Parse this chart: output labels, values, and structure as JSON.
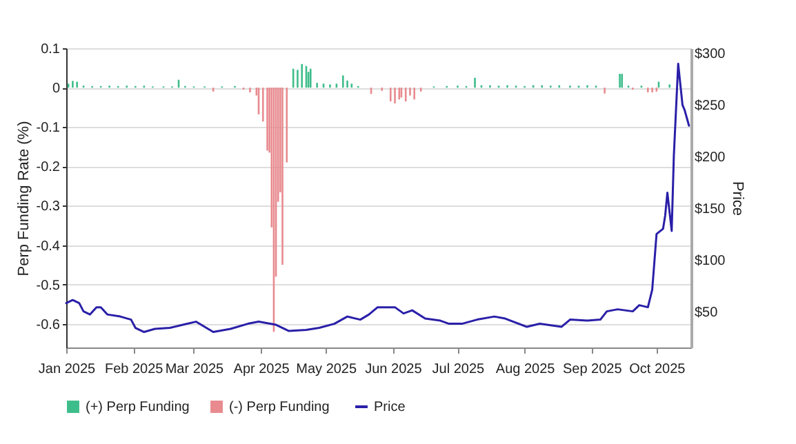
{
  "chart_data": {
    "type": "bar",
    "ylabel": "Perp Funding Rate (%)",
    "y2label": "Price",
    "legend": "bottom",
    "grid": "y",
    "xlim": [
      "2025-01-01",
      "2025-10-17"
    ],
    "xticks": [
      {
        "value": "2025-01-01",
        "label": "Jan 2025"
      },
      {
        "value": "2025-02-01",
        "label": "Feb 2025"
      },
      {
        "value": "2025-03-01",
        "label": "Mar 2025"
      },
      {
        "value": "2025-04-01",
        "label": "Apr 2025"
      },
      {
        "value": "2025-05-01",
        "label": "May 2025"
      },
      {
        "value": "2025-06-01",
        "label": "Jun 2025"
      },
      {
        "value": "2025-07-01",
        "label": "Jul 2025"
      },
      {
        "value": "2025-08-01",
        "label": "Aug 2025"
      },
      {
        "value": "2025-09-01",
        "label": "Sep 2025"
      },
      {
        "value": "2025-10-01",
        "label": "Oct 2025"
      }
    ],
    "ylim": [
      -0.66,
      0.1
    ],
    "yticks": [
      -0.6,
      -0.5,
      -0.4,
      -0.3,
      -0.2,
      -0.1,
      0,
      0.1
    ],
    "y2lim": [
      15,
      305
    ],
    "y2ticks": [
      {
        "value": 50,
        "label": "$50"
      },
      {
        "value": 100,
        "label": "$100"
      },
      {
        "value": 150,
        "label": "$150"
      },
      {
        "value": 200,
        "label": "$200"
      },
      {
        "value": 250,
        "label": "$250"
      },
      {
        "value": 300,
        "label": "$300"
      }
    ],
    "series": [
      {
        "name": "(+) Perp Funding",
        "color": "#3dbd8a",
        "x": [
          "2025-01-02",
          "2025-01-04",
          "2025-01-06",
          "2025-01-09",
          "2025-01-13",
          "2025-01-17",
          "2025-01-21",
          "2025-01-25",
          "2025-01-29",
          "2025-02-02",
          "2025-02-06",
          "2025-02-10",
          "2025-02-15",
          "2025-02-19",
          "2025-02-22",
          "2025-02-25",
          "2025-03-01",
          "2025-03-06",
          "2025-03-14",
          "2025-03-20",
          "2025-04-16",
          "2025-04-18",
          "2025-04-20",
          "2025-04-22",
          "2025-04-23",
          "2025-04-24",
          "2025-04-27",
          "2025-04-30",
          "2025-05-03",
          "2025-05-06",
          "2025-05-09",
          "2025-05-11",
          "2025-05-13",
          "2025-05-16",
          "2025-06-20",
          "2025-06-26",
          "2025-07-01",
          "2025-07-05",
          "2025-07-09",
          "2025-07-12",
          "2025-07-16",
          "2025-07-20",
          "2025-07-24",
          "2025-07-28",
          "2025-08-01",
          "2025-08-05",
          "2025-08-09",
          "2025-08-13",
          "2025-08-17",
          "2025-08-22",
          "2025-08-26",
          "2025-08-30",
          "2025-09-03",
          "2025-09-14",
          "2025-09-15",
          "2025-09-18",
          "2025-09-24",
          "2025-10-02",
          "2025-10-07"
        ],
        "values": [
          0.01,
          0.017,
          0.015,
          0.005,
          0.004,
          0.004,
          0.005,
          0.004,
          0.005,
          0.004,
          0.005,
          0.003,
          0.003,
          0.003,
          0.02,
          0.004,
          0.003,
          0.003,
          0.003,
          0.004,
          0.048,
          0.045,
          0.06,
          0.055,
          0.04,
          0.048,
          0.012,
          0.01,
          0.008,
          0.01,
          0.031,
          0.018,
          0.01,
          0.004,
          0.003,
          0.004,
          0.005,
          0.004,
          0.025,
          0.006,
          0.006,
          0.005,
          0.006,
          0.005,
          0.004,
          0.006,
          0.006,
          0.005,
          0.006,
          0.005,
          0.005,
          0.006,
          0.005,
          0.035,
          0.035,
          0.005,
          0.005,
          0.015,
          0.008
        ]
      },
      {
        "name": "(-) Perp Funding",
        "color": "#e88a8e",
        "x": [
          "2025-03-10",
          "2025-03-24",
          "2025-03-27",
          "2025-03-30",
          "2025-03-31",
          "2025-04-02",
          "2025-04-04",
          "2025-04-05",
          "2025-04-06",
          "2025-04-07",
          "2025-04-08",
          "2025-04-09",
          "2025-04-10",
          "2025-04-11",
          "2025-04-13",
          "2025-05-22",
          "2025-05-27",
          "2025-05-31",
          "2025-06-02",
          "2025-06-04",
          "2025-06-05",
          "2025-06-07",
          "2025-06-09",
          "2025-06-11",
          "2025-06-14",
          "2025-09-07",
          "2025-09-20",
          "2025-09-27",
          "2025-09-29",
          "2025-10-01"
        ],
        "values": [
          -0.01,
          -0.005,
          -0.012,
          -0.02,
          -0.068,
          -0.086,
          -0.16,
          -0.165,
          -0.355,
          -0.62,
          -0.48,
          -0.29,
          -0.266,
          -0.45,
          -0.19,
          -0.016,
          -0.008,
          -0.035,
          -0.04,
          -0.03,
          -0.025,
          -0.035,
          -0.02,
          -0.03,
          -0.01,
          -0.015,
          -0.005,
          -0.012,
          -0.012,
          -0.01
        ]
      },
      {
        "name": "Price",
        "type": "line",
        "axis": "y2",
        "color": "#2a1fa8",
        "x": [
          "2025-01-01",
          "2025-01-04",
          "2025-01-07",
          "2025-01-09",
          "2025-01-12",
          "2025-01-15",
          "2025-01-17",
          "2025-01-20",
          "2025-01-26",
          "2025-01-31",
          "2025-02-02",
          "2025-02-06",
          "2025-02-11",
          "2025-02-18",
          "2025-02-24",
          "2025-03-02",
          "2025-03-10",
          "2025-03-18",
          "2025-03-26",
          "2025-03-31",
          "2025-04-08",
          "2025-04-14",
          "2025-04-22",
          "2025-04-28",
          "2025-05-05",
          "2025-05-11",
          "2025-05-17",
          "2025-05-21",
          "2025-05-25",
          "2025-06-02",
          "2025-06-06",
          "2025-06-10",
          "2025-06-16",
          "2025-06-23",
          "2025-06-27",
          "2025-07-03",
          "2025-07-10",
          "2025-07-18",
          "2025-07-23",
          "2025-08-02",
          "2025-08-08",
          "2025-08-18",
          "2025-08-22",
          "2025-08-30",
          "2025-09-05",
          "2025-09-08",
          "2025-09-13",
          "2025-09-20",
          "2025-09-23",
          "2025-09-27",
          "2025-09-29",
          "2025-10-01",
          "2025-10-04",
          "2025-10-05",
          "2025-10-06",
          "2025-10-08",
          "2025-10-09",
          "2025-10-11",
          "2025-10-13",
          "2025-10-14",
          "2025-10-16"
        ],
        "values": [
          58,
          61,
          58,
          50,
          47,
          54,
          54,
          47,
          45,
          42,
          34,
          30,
          33,
          34,
          37,
          40,
          30,
          33,
          38,
          40,
          37,
          31,
          32,
          34,
          38,
          45,
          42,
          47,
          54,
          54,
          48,
          51,
          43,
          41,
          38,
          38,
          42,
          45,
          43,
          35,
          38,
          35,
          42,
          41,
          42,
          50,
          52,
          50,
          56,
          54,
          71,
          125,
          130,
          143,
          165,
          128,
          201,
          290,
          250,
          245,
          230
        ]
      }
    ]
  }
}
